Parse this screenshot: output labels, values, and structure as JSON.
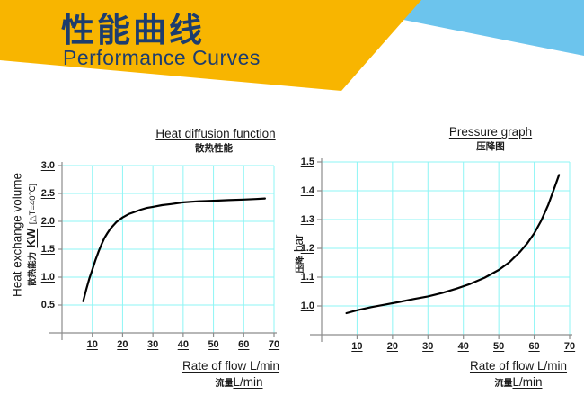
{
  "header": {
    "title_zh": "性能曲线",
    "title_en": "Performance Curves",
    "colors": {
      "yellow": "#f8b500",
      "blue": "#6cc4ed",
      "navy": "#1d3d6e"
    }
  },
  "style_colors": {
    "grid_cyan": "#8ef5f5",
    "axis_gray": "#8c8c8c",
    "curve_black": "#000000"
  },
  "chart_data": [
    {
      "type": "line",
      "title": "Heat diffusion function",
      "title_zh": "散热性能",
      "xlabel": "Rate of flow L/min",
      "xlabel_zh": "流量",
      "xlabel_unit": "L/min",
      "ylabel_en": "Heat exchange volume",
      "ylabel_zh": "散热能力",
      "ylabel_unit": "KW",
      "ylabel_condition": "[△T=40℃]",
      "xlim": [
        0,
        70
      ],
      "ylim": [
        0,
        3.0
      ],
      "x_ticks": [
        "10",
        "20",
        "30",
        "40",
        "50",
        "60",
        "70"
      ],
      "y_ticks": [
        "0.5",
        "1.0",
        "1.5",
        "2.0",
        "2.5",
        "3.0"
      ],
      "grid": true,
      "legend": null,
      "series": [
        {
          "name": "heat-exchange-curve",
          "points": [
            [
              7,
              0.57
            ],
            [
              8,
              0.78
            ],
            [
              9,
              0.97
            ],
            [
              10,
              1.13
            ],
            [
              11,
              1.3
            ],
            [
              12,
              1.45
            ],
            [
              13,
              1.58
            ],
            [
              14,
              1.7
            ],
            [
              15,
              1.79
            ],
            [
              16,
              1.87
            ],
            [
              17,
              1.93
            ],
            [
              18,
              1.99
            ],
            [
              19,
              2.03
            ],
            [
              20,
              2.07
            ],
            [
              22,
              2.13
            ],
            [
              24,
              2.17
            ],
            [
              26,
              2.21
            ],
            [
              28,
              2.24
            ],
            [
              30,
              2.26
            ],
            [
              33,
              2.29
            ],
            [
              36,
              2.31
            ],
            [
              40,
              2.34
            ],
            [
              45,
              2.36
            ],
            [
              50,
              2.37
            ],
            [
              55,
              2.38
            ],
            [
              60,
              2.39
            ],
            [
              64,
              2.4
            ],
            [
              67,
              2.41
            ]
          ]
        }
      ]
    },
    {
      "type": "line",
      "title": "Pressure graph",
      "title_zh": "压降图",
      "xlabel": "Rate of flow L/min",
      "xlabel_zh": "流量",
      "xlabel_unit": "L/min",
      "ylabel_en": "",
      "ylabel_zh": "压降",
      "ylabel_unit": "bar",
      "ylabel_condition": "",
      "xlim": [
        0,
        70
      ],
      "ylim": [
        0.9,
        1.5
      ],
      "x_ticks": [
        "10",
        "20",
        "30",
        "40",
        "50",
        "60",
        "70"
      ],
      "y_ticks": [
        "1.0",
        "1.1",
        "1.2",
        "1.3",
        "1.4",
        "1.5"
      ],
      "grid": true,
      "legend": null,
      "series": [
        {
          "name": "pressure-drop-curve",
          "points": [
            [
              7,
              0.975
            ],
            [
              10,
              0.985
            ],
            [
              14,
              0.996
            ],
            [
              18,
              1.005
            ],
            [
              22,
              1.014
            ],
            [
              26,
              1.024
            ],
            [
              30,
              1.033
            ],
            [
              34,
              1.045
            ],
            [
              38,
              1.06
            ],
            [
              42,
              1.077
            ],
            [
              46,
              1.098
            ],
            [
              50,
              1.125
            ],
            [
              53,
              1.152
            ],
            [
              56,
              1.188
            ],
            [
              58,
              1.217
            ],
            [
              60,
              1.252
            ],
            [
              62,
              1.297
            ],
            [
              64,
              1.352
            ],
            [
              66,
              1.42
            ],
            [
              67,
              1.455
            ]
          ]
        }
      ]
    }
  ]
}
